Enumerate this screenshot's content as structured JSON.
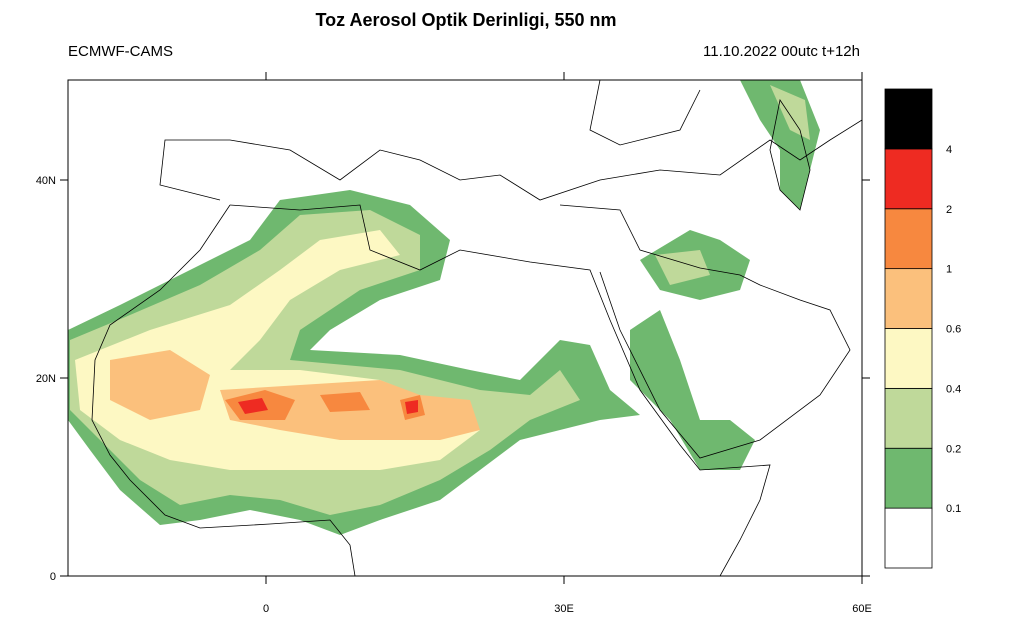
{
  "title": "Toz Aerosol Optik Derinligi, 550 nm",
  "source": "ECMWF-CAMS",
  "valid_time": "11.10.2022 00utc t+12h",
  "lat_ticks": [
    {
      "value": 40,
      "label": "40N"
    },
    {
      "value": 20,
      "label": "20N"
    },
    {
      "value": 0,
      "label": "0"
    }
  ],
  "lon_ticks": [
    {
      "value": 0,
      "label": "0"
    },
    {
      "value": 30,
      "label": "30E"
    },
    {
      "value": 60,
      "label": "60E"
    }
  ],
  "colorbar": {
    "levels": [
      0.1,
      0.2,
      0.4,
      0.6,
      1,
      2,
      4
    ],
    "colors": [
      "#ffffff",
      "#6fb86f",
      "#bfd99a",
      "#fdf8c3",
      "#fbc07c",
      "#f7883f",
      "#ee2b22",
      "#000000"
    ]
  }
}
